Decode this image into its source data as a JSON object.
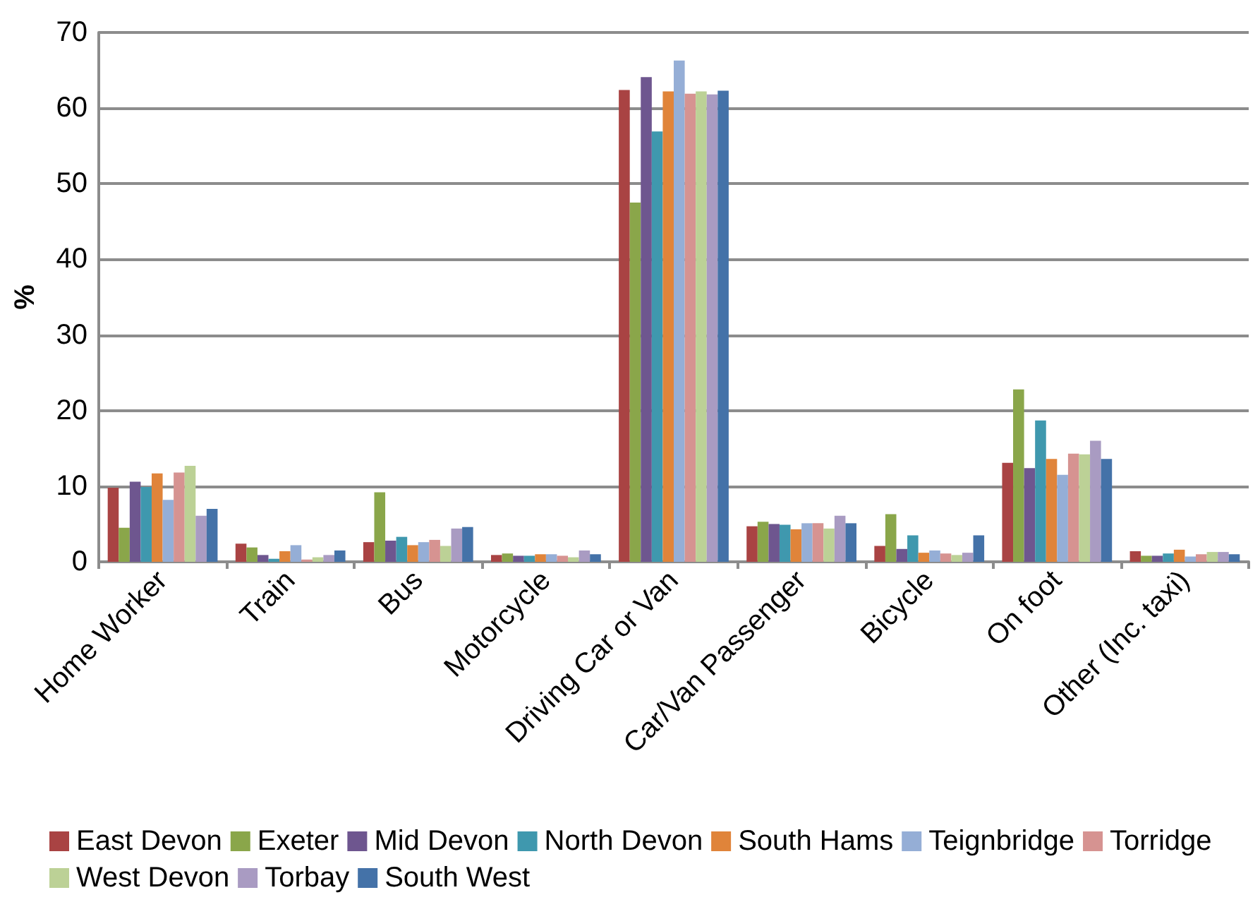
{
  "chart_data": {
    "type": "bar",
    "ylabel": "%",
    "categories": [
      "Home Worker",
      "Train",
      "Bus",
      "Motorcycle",
      "Driving Car or Van",
      "Car/Van Passenger",
      "Bicycle",
      "On foot",
      "Other (Inc. taxi)"
    ],
    "series": [
      {
        "name": "East Devon",
        "color": "#a94343",
        "values": [
          9.8,
          2.4,
          2.6,
          0.9,
          62.4,
          4.7,
          2.1,
          13.1,
          1.4
        ]
      },
      {
        "name": "Exeter",
        "color": "#8aa64a",
        "values": [
          4.5,
          1.9,
          9.2,
          1.1,
          47.5,
          5.3,
          6.3,
          22.8,
          0.8
        ]
      },
      {
        "name": "Mid Devon",
        "color": "#6e568f",
        "values": [
          10.6,
          0.9,
          2.8,
          0.8,
          64.1,
          5.0,
          1.7,
          12.4,
          0.8
        ]
      },
      {
        "name": "North Devon",
        "color": "#3f98ae",
        "values": [
          9.9,
          0.4,
          3.3,
          0.8,
          56.9,
          4.9,
          3.5,
          18.7,
          1.1
        ]
      },
      {
        "name": "South Hams",
        "color": "#e0843a",
        "values": [
          11.7,
          1.4,
          2.2,
          1.0,
          62.2,
          4.3,
          1.2,
          13.6,
          1.6
        ]
      },
      {
        "name": "Teignbridge",
        "color": "#95aed6",
        "values": [
          8.2,
          2.2,
          2.6,
          1.0,
          66.3,
          5.1,
          1.5,
          11.5,
          0.7
        ]
      },
      {
        "name": "Torridge",
        "color": "#d69391",
        "values": [
          11.8,
          0.3,
          2.9,
          0.8,
          61.9,
          5.1,
          1.1,
          14.3,
          1.0
        ]
      },
      {
        "name": "West Devon",
        "color": "#bcd196",
        "values": [
          12.7,
          0.6,
          2.1,
          0.6,
          62.2,
          4.4,
          0.9,
          14.2,
          1.3
        ]
      },
      {
        "name": "Torbay",
        "color": "#a99bc2",
        "values": [
          6.1,
          0.9,
          4.4,
          1.5,
          61.8,
          6.1,
          1.2,
          16.0,
          1.3
        ]
      },
      {
        "name": "South West",
        "color": "#4472a8",
        "values": [
          7.0,
          1.5,
          4.6,
          1.0,
          62.3,
          5.1,
          3.5,
          13.6,
          1.0
        ]
      }
    ],
    "ylim": [
      0,
      70
    ],
    "yticks": [
      0,
      10,
      20,
      30,
      40,
      50,
      60,
      70
    ],
    "grid": "y",
    "legend": "bottom"
  }
}
